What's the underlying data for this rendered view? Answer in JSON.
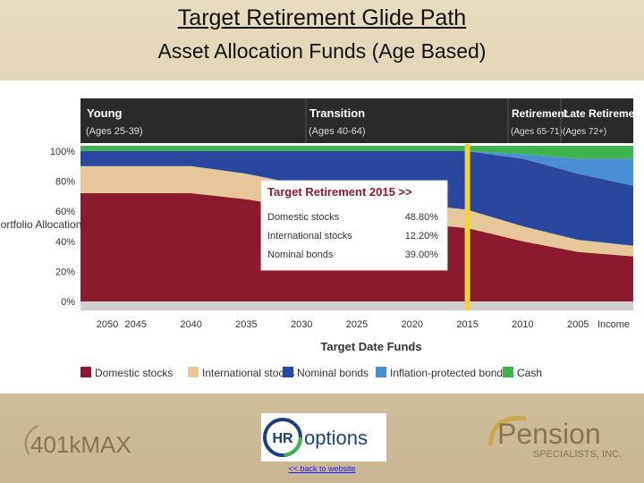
{
  "page": {
    "title": "Target Retirement Glide Path",
    "subtitle": "Asset Allocation Funds (Age Based)",
    "back_link": "<< back to website"
  },
  "logos": {
    "left": "401kMAX",
    "center_hr": "HR",
    "center_word": "options",
    "right_main": "Pension",
    "right_sub": "SPECIALISTS, INC."
  },
  "phases": [
    {
      "name": "Young",
      "ages": "(Ages 25-39)"
    },
    {
      "name": "Transition",
      "ages": "(Ages 40-64)"
    },
    {
      "name": "Retirement",
      "ages": "(Ages 65-71)"
    },
    {
      "name": "Late Retirement",
      "ages": "(Ages 72+)"
    }
  ],
  "colors": {
    "domestic": "#8b1a2e",
    "international": "#e5c79a",
    "nominal": "#2a47a0",
    "inflation": "#4a8fd6",
    "cash": "#3fb34f",
    "highlight": "#f2d23a",
    "header": "#2a2a2a"
  },
  "chart_data": {
    "type": "area",
    "ylabel": "Portfolio Allocation",
    "xlabel": "Target Date Funds",
    "yticks": [
      "100%",
      "80%",
      "60%",
      "40%",
      "20%",
      "0%"
    ],
    "ylim": [
      0,
      100
    ],
    "categories": [
      "2050",
      "2045",
      "2040",
      "2035",
      "2030",
      "2025",
      "2020",
      "2015",
      "2010",
      "2005",
      "Income"
    ],
    "series": [
      {
        "name": "Domestic stocks",
        "values": [
          72,
          72,
          72,
          68,
          62,
          57,
          52,
          48.8,
          40,
          33,
          30
        ]
      },
      {
        "name": "International stocks",
        "values": [
          18,
          18,
          18,
          17,
          15.5,
          14,
          13,
          12.2,
          10,
          8,
          7
        ]
      },
      {
        "name": "Nominal bonds",
        "values": [
          10,
          10,
          10,
          15,
          22.5,
          29,
          35,
          39,
          45,
          44,
          40
        ]
      },
      {
        "name": "Inflation-protected bonds",
        "values": [
          0,
          0,
          0,
          0,
          0,
          0,
          0,
          0,
          3,
          10,
          18
        ]
      },
      {
        "name": "Cash",
        "values": [
          0,
          0,
          0,
          0,
          0,
          0,
          0,
          0,
          2,
          5,
          5
        ]
      }
    ],
    "highlight_category": "2015",
    "callout": {
      "title": "Target Retirement 2015 >>",
      "rows": [
        {
          "label": "Domestic stocks",
          "value": "48.80%"
        },
        {
          "label": "International stocks",
          "value": "12.20%"
        },
        {
          "label": "Nominal bonds",
          "value": "39.00%"
        }
      ]
    },
    "legend_position": "bottom"
  }
}
